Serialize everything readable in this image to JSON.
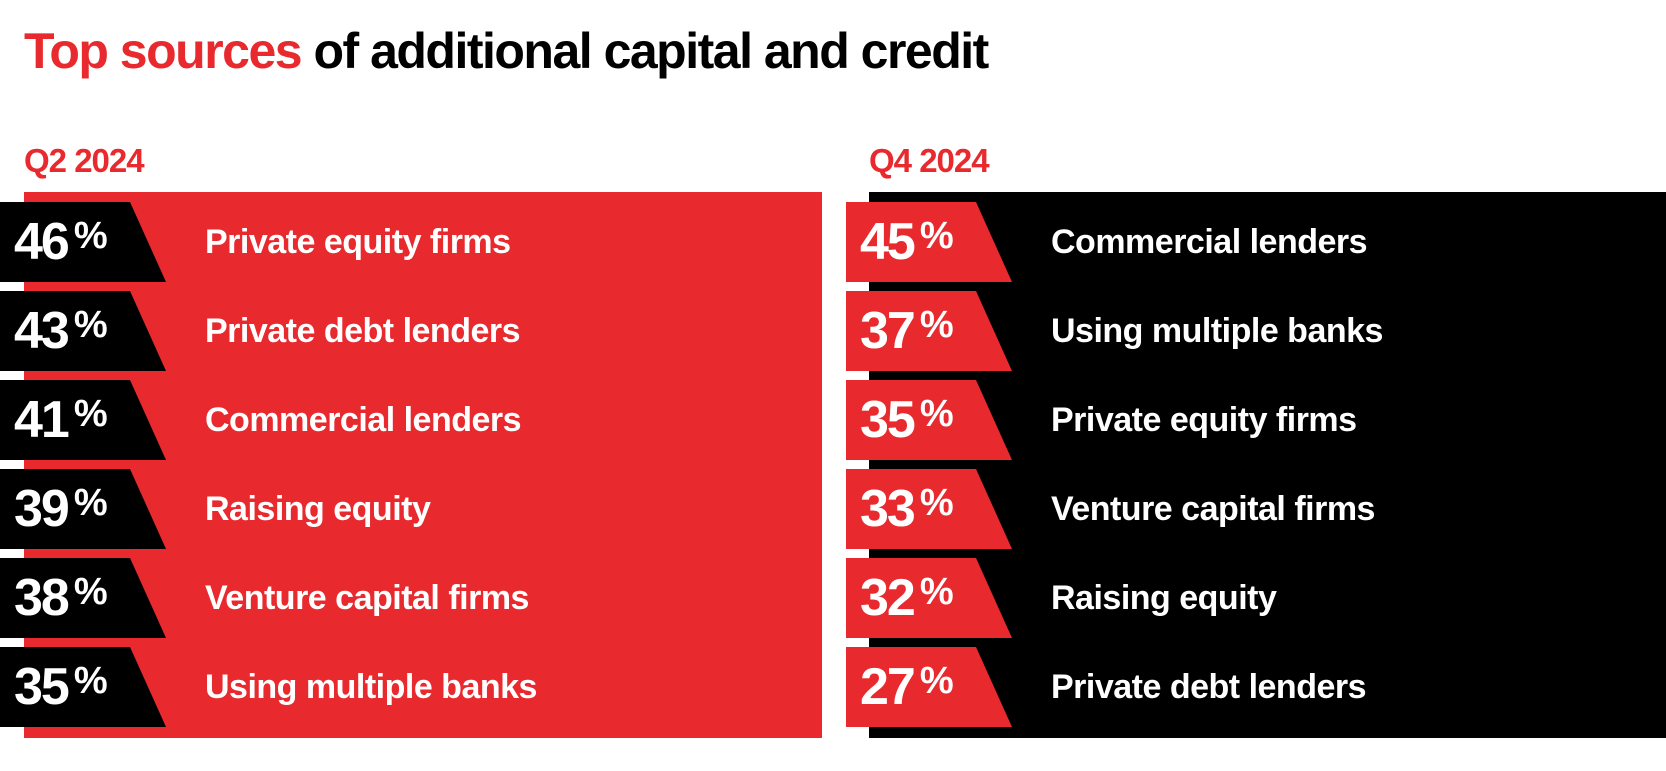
{
  "title": {
    "accent_text": "Top sources",
    "rest_text": " of additional capital and credit"
  },
  "colors": {
    "accent": "#e8292d",
    "dark": "#000000",
    "text_on_bar": "#ffffff"
  },
  "chart_data": [
    {
      "type": "table",
      "panel_label": "Q2 2024",
      "unit": "%",
      "rows": [
        {
          "value": 46,
          "label": "Private equity firms"
        },
        {
          "value": 43,
          "label": "Private debt lenders"
        },
        {
          "value": 41,
          "label": "Commercial lenders"
        },
        {
          "value": 39,
          "label": "Raising equity"
        },
        {
          "value": 38,
          "label": "Venture capital firms"
        },
        {
          "value": 35,
          "label": "Using multiple banks"
        }
      ]
    },
    {
      "type": "table",
      "panel_label": "Q4 2024",
      "unit": "%",
      "rows": [
        {
          "value": 45,
          "label": "Commercial lenders"
        },
        {
          "value": 37,
          "label": "Using multiple banks"
        },
        {
          "value": 35,
          "label": "Private equity firms"
        },
        {
          "value": 33,
          "label": "Venture capital firms"
        },
        {
          "value": 32,
          "label": "Raising equity"
        },
        {
          "value": 27,
          "label": "Private debt lenders"
        }
      ]
    }
  ]
}
